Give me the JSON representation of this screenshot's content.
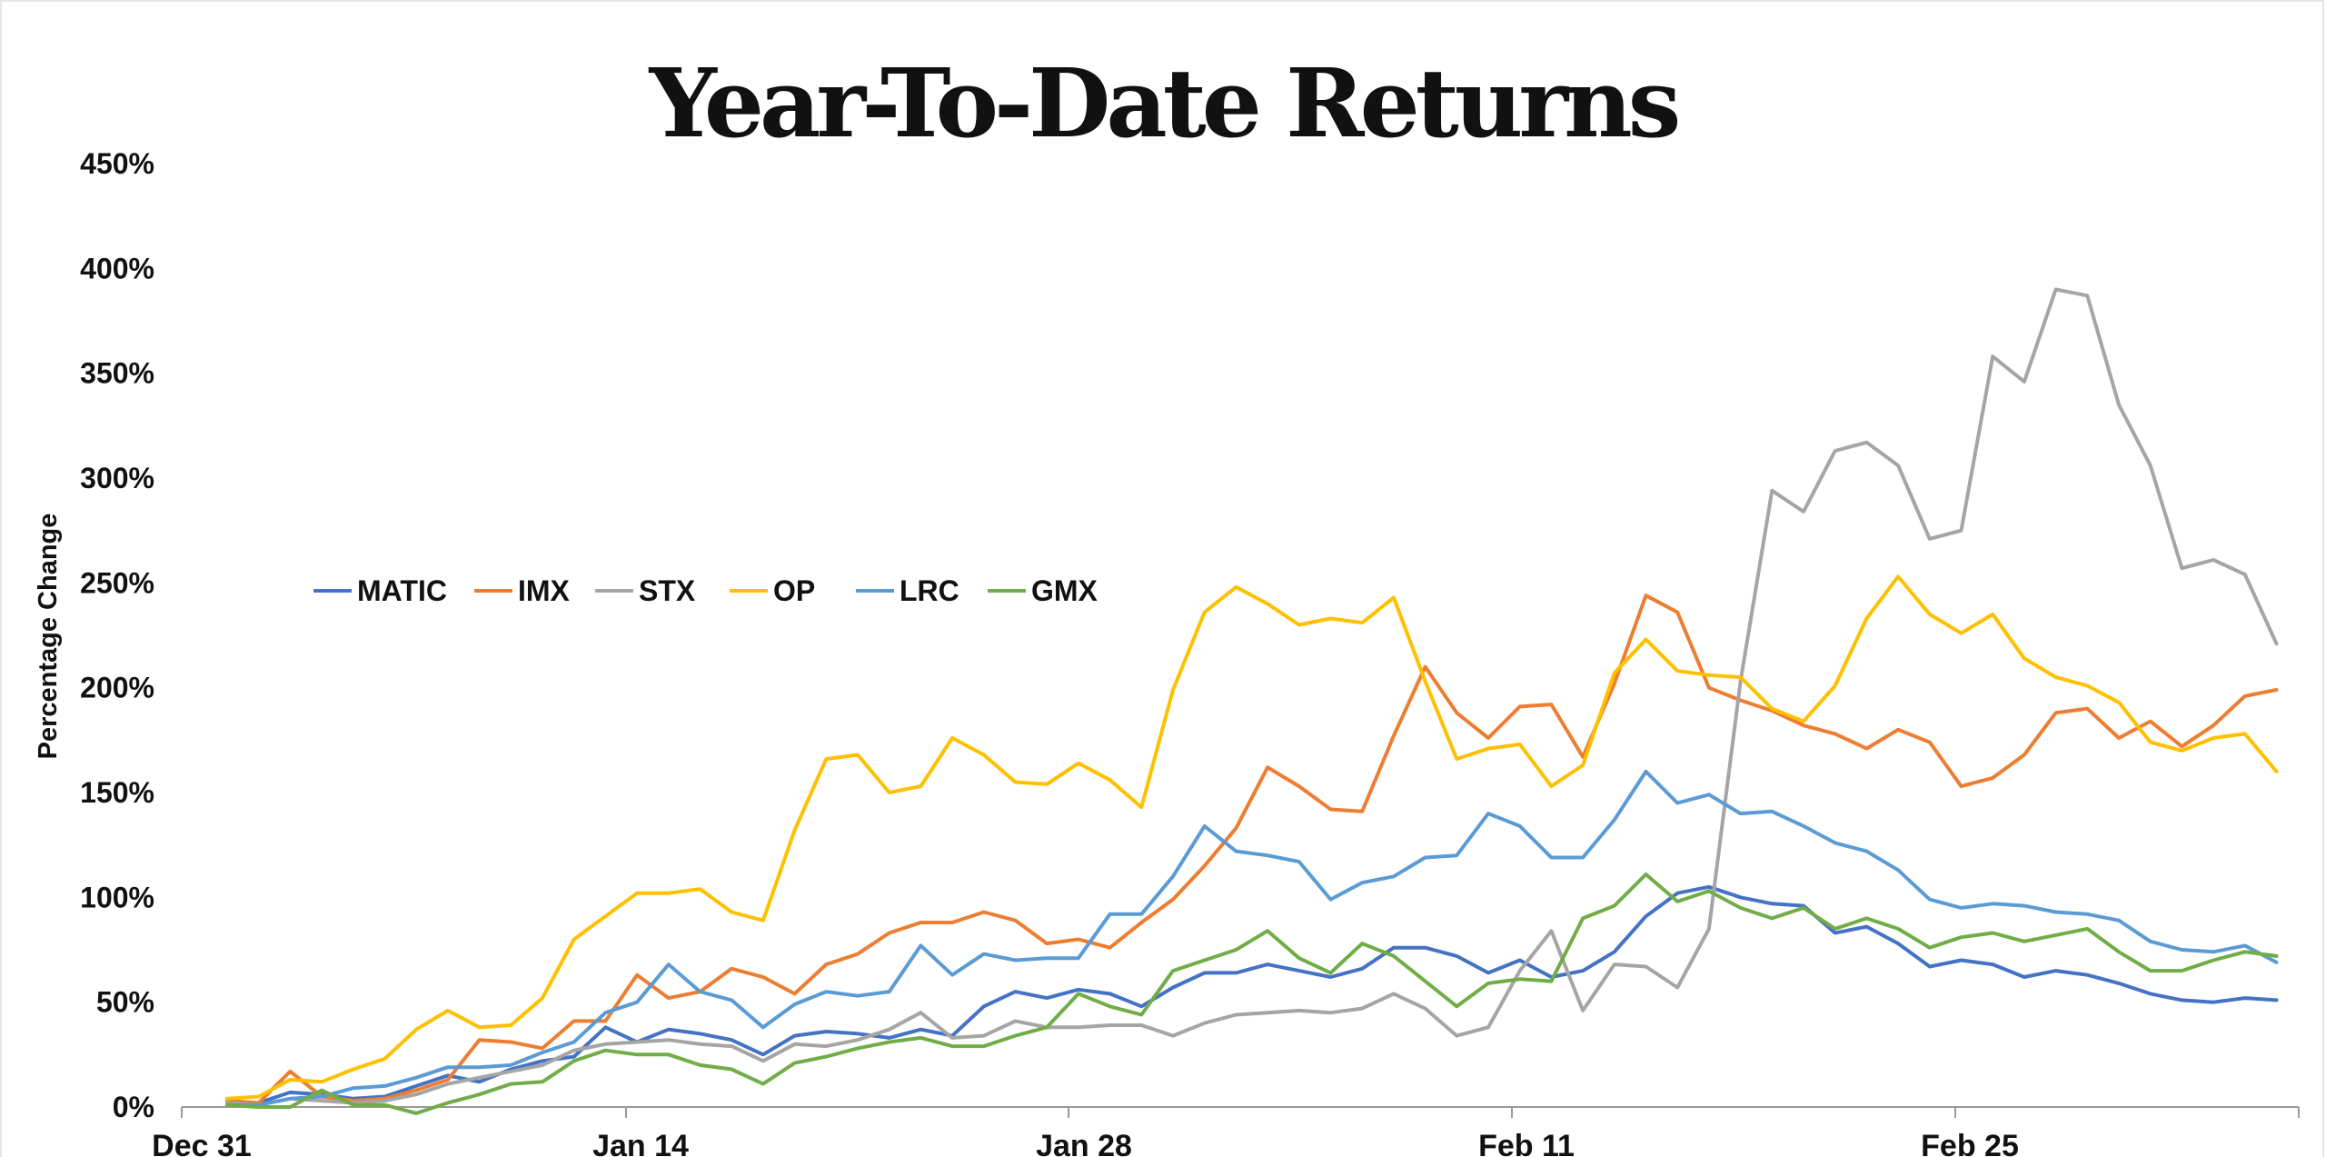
{
  "chart_data": {
    "type": "line",
    "title": "Year-To-Date Returns",
    "ylabel": "Percentage Change",
    "xlabel": "",
    "ylim": [
      0,
      450
    ],
    "yticks": [
      0,
      50,
      100,
      150,
      200,
      250,
      300,
      350,
      400,
      450
    ],
    "ytick_labels": [
      "0%",
      "50%",
      "100%",
      "150%",
      "200%",
      "250%",
      "300%",
      "350%",
      "400%",
      "450%"
    ],
    "xlim": [
      "Dec 31",
      "Mar 10"
    ],
    "xticks": [
      "Dec 31",
      "Jan 14",
      "Jan 28",
      "Feb 11",
      "Feb 25"
    ],
    "grid": false,
    "legend_position": "upper-left",
    "series": [
      {
        "name": "MATIC",
        "color": "#4472c4",
        "values": [
          1,
          2,
          7,
          6,
          4,
          5,
          10,
          15,
          12,
          18,
          22,
          24,
          38,
          31,
          37,
          35,
          32,
          25,
          34,
          36,
          35,
          33,
          37,
          34,
          48,
          55,
          52,
          56,
          54,
          48,
          57,
          64,
          64,
          68,
          65,
          62,
          66,
          76,
          76,
          72,
          64,
          70,
          62,
          65,
          74,
          91,
          102,
          105,
          100,
          97,
          96,
          83,
          86,
          78,
          67,
          70,
          68,
          62,
          65,
          63,
          59,
          54,
          51,
          50,
          52,
          51
        ]
      },
      {
        "name": "IMX",
        "color": "#ed7d31",
        "values": [
          3,
          2,
          17,
          5,
          3,
          4,
          8,
          13,
          32,
          31,
          28,
          41,
          41,
          63,
          52,
          55,
          66,
          62,
          54,
          68,
          73,
          83,
          88,
          88,
          93,
          89,
          78,
          80,
          76,
          88,
          99,
          115,
          133,
          162,
          153,
          142,
          141,
          177,
          210,
          188,
          176,
          191,
          192,
          167,
          202,
          244,
          236,
          200,
          194,
          189,
          182,
          178,
          171,
          180,
          174,
          153,
          157,
          168,
          188,
          190,
          176,
          184,
          172,
          182,
          196,
          199
        ]
      },
      {
        "name": "STX",
        "color": "#a5a5a5",
        "values": [
          2,
          1,
          4,
          3,
          2,
          3,
          6,
          11,
          14,
          17,
          20,
          27,
          30,
          31,
          32,
          30,
          29,
          22,
          30,
          29,
          32,
          37,
          45,
          33,
          34,
          41,
          38,
          38,
          39,
          39,
          34,
          40,
          44,
          45,
          46,
          45,
          47,
          54,
          47,
          34,
          38,
          65,
          84,
          46,
          68,
          67,
          57,
          85,
          203,
          294,
          284,
          313,
          317,
          306,
          271,
          275,
          358,
          346,
          390,
          387,
          335,
          306,
          257,
          261,
          254,
          221
        ]
      },
      {
        "name": "OP",
        "color": "#ffc000",
        "values": [
          4,
          5,
          13,
          12,
          18,
          23,
          37,
          46,
          38,
          39,
          52,
          80,
          91,
          102,
          102,
          104,
          93,
          89,
          132,
          166,
          168,
          150,
          153,
          176,
          168,
          155,
          154,
          164,
          156,
          143,
          199,
          236,
          248,
          240,
          230,
          233,
          231,
          243,
          203,
          166,
          171,
          173,
          153,
          163,
          207,
          223,
          208,
          206,
          205,
          190,
          184,
          201,
          233,
          253,
          235,
          226,
          235,
          214,
          205,
          201,
          193,
          174,
          170,
          176,
          178,
          160
        ]
      },
      {
        "name": "LRC",
        "color": "#5b9bd5",
        "values": [
          1,
          1,
          4,
          5,
          9,
          10,
          14,
          19,
          19,
          20,
          26,
          31,
          45,
          50,
          68,
          55,
          51,
          38,
          49,
          55,
          53,
          55,
          77,
          63,
          73,
          70,
          71,
          71,
          92,
          92,
          110,
          134,
          122,
          120,
          117,
          99,
          107,
          110,
          119,
          120,
          140,
          134,
          119,
          119,
          137,
          160,
          145,
          149,
          140,
          141,
          134,
          126,
          122,
          113,
          99,
          95,
          97,
          96,
          93,
          92,
          89,
          79,
          75,
          74,
          77,
          69
        ]
      },
      {
        "name": "GMX",
        "color": "#70ad47",
        "values": [
          1,
          0,
          0,
          8,
          1,
          1,
          -3,
          2,
          6,
          11,
          12,
          22,
          27,
          25,
          25,
          20,
          18,
          11,
          21,
          24,
          28,
          31,
          33,
          29,
          29,
          34,
          38,
          54,
          48,
          44,
          65,
          70,
          75,
          84,
          71,
          64,
          78,
          72,
          60,
          48,
          59,
          61,
          60,
          90,
          96,
          111,
          98,
          103,
          95,
          90,
          95,
          85,
          90,
          85,
          76,
          81,
          83,
          79,
          82,
          85,
          74,
          65,
          65,
          70,
          74,
          72
        ]
      }
    ]
  }
}
